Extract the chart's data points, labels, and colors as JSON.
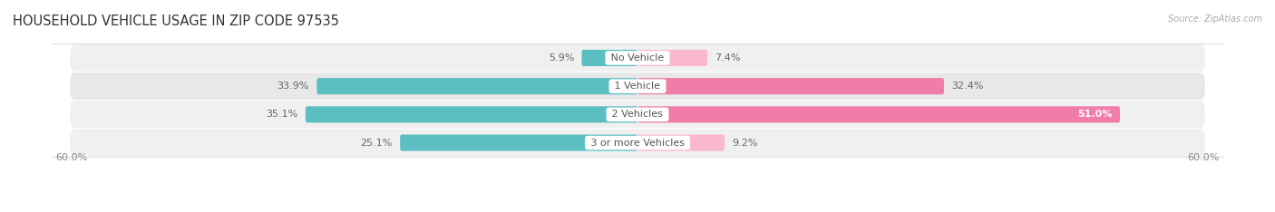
{
  "title": "HOUSEHOLD VEHICLE USAGE IN ZIP CODE 97535",
  "source": "Source: ZipAtlas.com",
  "categories": [
    "No Vehicle",
    "1 Vehicle",
    "2 Vehicles",
    "3 or more Vehicles"
  ],
  "owner_values": [
    5.9,
    33.9,
    35.1,
    25.1
  ],
  "renter_values": [
    7.4,
    32.4,
    51.0,
    9.2
  ],
  "owner_color": "#5bbfc2",
  "renter_color": "#f07ca8",
  "renter_color_light": "#f9b8cf",
  "row_bg_color_dark": "#e8e8e8",
  "row_bg_color_light": "#f0f0f0",
  "max_val": 60.0,
  "xlabel_label": "60.0%",
  "title_fontsize": 10.5,
  "label_fontsize": 8,
  "legend_fontsize": 8,
  "bar_height": 0.58
}
